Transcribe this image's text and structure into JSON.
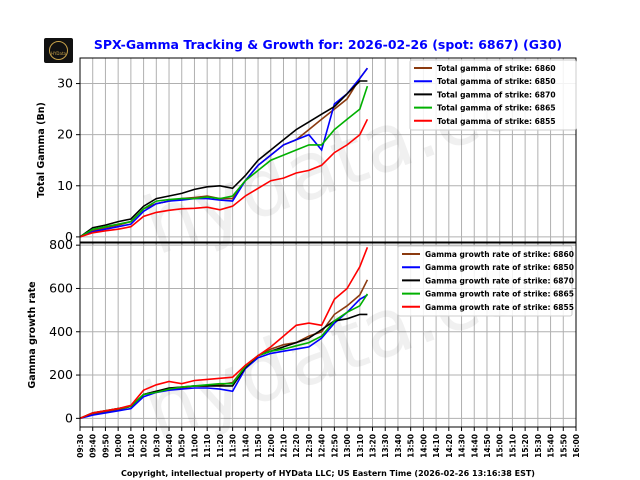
{
  "title": "SPX-Gamma Tracking & Growth for: 2026-02-26 (spot: 6867) (G30)",
  "footer": "Copyright, intellectual property of HYData LLC; US Eastern Time (2026-02-26 13:16:38 EST)",
  "logo_text": "HYData",
  "watermark": "hydata.ca",
  "chart_data": [
    {
      "type": "line",
      "ylabel": "Total Gamma (Bn)",
      "ylim": [
        -1,
        35
      ],
      "yticks": [
        0,
        10,
        20,
        30
      ],
      "grid": true,
      "legend": "top-right",
      "x": [
        "09:30",
        "09:40",
        "09:50",
        "10:00",
        "10:10",
        "10:20",
        "10:30",
        "10:40",
        "10:50",
        "11:00",
        "11:10",
        "11:20",
        "11:30",
        "11:40",
        "11:50",
        "12:00",
        "12:10",
        "12:20",
        "12:30",
        "12:40",
        "12:50",
        "13:00",
        "13:10",
        "13:16"
      ],
      "series": [
        {
          "name": "Total gamma of strike: 6860",
          "color": "#8B3A0F",
          "values": [
            0,
            1.2,
            1.8,
            2.3,
            3,
            5.5,
            6.5,
            7,
            7.5,
            7.7,
            8,
            7.5,
            7.5,
            11,
            14,
            16,
            18,
            19,
            21,
            23,
            25,
            27,
            31,
            33
          ]
        },
        {
          "name": "Total gamma of strike: 6850",
          "color": "#0000ff",
          "values": [
            0,
            1,
            1.5,
            2,
            2.5,
            5,
            6.5,
            7,
            7.2,
            7.5,
            7.5,
            7.2,
            7,
            11,
            14,
            16,
            18,
            19,
            20,
            17,
            26,
            28,
            31,
            33
          ]
        },
        {
          "name": "Total gamma of strike: 6870",
          "color": "#000000",
          "values": [
            0,
            1.8,
            2.3,
            3,
            3.5,
            6,
            7.5,
            8,
            8.5,
            9.3,
            9.8,
            10,
            9.5,
            12,
            15,
            17,
            19,
            21,
            22.5,
            24,
            25.5,
            28,
            30.5,
            30.5
          ]
        },
        {
          "name": "Total gamma of strike: 6865",
          "color": "#00b000",
          "values": [
            0,
            1.5,
            2,
            2.5,
            3,
            5.5,
            7,
            7.3,
            7.5,
            7.5,
            7.8,
            7.5,
            8,
            11,
            13,
            15,
            16,
            17,
            18,
            18,
            21,
            23,
            25,
            29.5
          ]
        },
        {
          "name": "Total gamma of strike: 6855",
          "color": "#ff0000",
          "values": [
            0,
            0.8,
            1.2,
            1.5,
            2,
            4,
            4.8,
            5.2,
            5.5,
            5.6,
            5.8,
            5.3,
            6,
            8,
            9.5,
            11,
            11.5,
            12.5,
            13,
            14,
            16.5,
            18,
            20,
            23
          ]
        }
      ]
    },
    {
      "type": "line",
      "ylabel": "Gamma growth rate",
      "ylim": [
        -40,
        810
      ],
      "yticks": [
        0,
        200,
        400,
        600,
        800
      ],
      "grid": true,
      "legend": "top-right",
      "xticks": [
        "09:30",
        "09:40",
        "09:50",
        "10:00",
        "10:10",
        "10:20",
        "10:30",
        "10:40",
        "10:50",
        "11:00",
        "11:10",
        "11:20",
        "11:30",
        "11:40",
        "11:50",
        "12:00",
        "12:10",
        "12:20",
        "12:30",
        "12:40",
        "12:50",
        "13:00",
        "13:10",
        "13:20",
        "13:30",
        "13:40",
        "13:50",
        "14:00",
        "14:10",
        "14:20",
        "14:30",
        "14:40",
        "14:50",
        "15:00",
        "15:10",
        "15:20",
        "15:30",
        "15:40",
        "15:50",
        "16:00"
      ],
      "x": [
        "09:30",
        "09:40",
        "09:50",
        "10:00",
        "10:10",
        "10:20",
        "10:30",
        "10:40",
        "10:50",
        "11:00",
        "11:10",
        "11:20",
        "11:30",
        "11:40",
        "11:50",
        "12:00",
        "12:10",
        "12:20",
        "12:30",
        "12:40",
        "12:50",
        "13:00",
        "13:10",
        "13:16"
      ],
      "series": [
        {
          "name": "Gamma growth rate of strike: 6860",
          "color": "#8B3A0F",
          "values": [
            0,
            20,
            30,
            40,
            55,
            110,
            125,
            135,
            140,
            150,
            150,
            155,
            165,
            240,
            290,
            320,
            340,
            350,
            380,
            400,
            480,
            520,
            570,
            640
          ]
        },
        {
          "name": "Gamma growth rate of strike: 6850",
          "color": "#0000ff",
          "values": [
            0,
            15,
            25,
            35,
            45,
            100,
            120,
            130,
            135,
            140,
            140,
            135,
            125,
            230,
            280,
            300,
            310,
            320,
            330,
            370,
            440,
            490,
            550,
            570
          ]
        },
        {
          "name": "Gamma growth rate of strike: 6870",
          "color": "#000000",
          "values": [
            0,
            25,
            35,
            45,
            55,
            110,
            125,
            140,
            145,
            150,
            150,
            150,
            150,
            235,
            290,
            310,
            330,
            350,
            370,
            410,
            450,
            460,
            480,
            480
          ]
        },
        {
          "name": "Gamma growth rate of strike: 6865",
          "color": "#00b000",
          "values": [
            0,
            25,
            35,
            45,
            55,
            110,
            120,
            135,
            145,
            150,
            155,
            160,
            160,
            240,
            290,
            310,
            320,
            335,
            350,
            380,
            450,
            490,
            520,
            575
          ]
        },
        {
          "name": "Gamma growth rate of strike: 6855",
          "color": "#ff0000",
          "values": [
            0,
            25,
            35,
            45,
            60,
            130,
            155,
            170,
            160,
            175,
            180,
            185,
            190,
            245,
            290,
            330,
            380,
            430,
            440,
            430,
            550,
            600,
            700,
            790
          ]
        }
      ]
    }
  ]
}
